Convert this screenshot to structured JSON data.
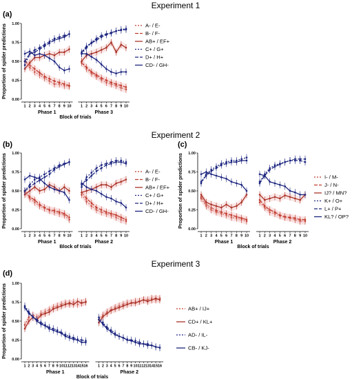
{
  "figure": {
    "experiment_titles": [
      "Experiment 1",
      "Experiment 2",
      "Experiment 3"
    ],
    "colors": {
      "dark_blue": "#1a237e",
      "blue": "#3344aa",
      "dark_red": "#9e1b1b",
      "orange_red": "#bf4a1f",
      "band": "#f3c8c8"
    }
  },
  "chart_data": [
    {
      "panel": "(a)",
      "type": "line",
      "ylabel": "Proportion of spider predictions",
      "xlabel": "Block of trials",
      "ylim": [
        0,
        1
      ],
      "yticks": [
        "0.00",
        "0.25",
        "0.50",
        "0.75",
        "1.00"
      ],
      "phases": [
        {
          "label": "Phase 1",
          "x": [
            1,
            2,
            3,
            4,
            5,
            6,
            7,
            8,
            9,
            10
          ]
        },
        {
          "label": "Phase 3",
          "x": [
            1,
            2,
            3,
            4,
            5,
            6,
            7,
            8,
            9,
            10
          ]
        }
      ],
      "series": [
        {
          "name": "A- / E-",
          "color": "#c0392b",
          "dash": "2,2",
          "values": [
            [
              0.5,
              0.42,
              0.36,
              0.32,
              0.28,
              0.24,
              0.2,
              0.2,
              0.18,
              0.17
            ],
            [
              0.5,
              0.4,
              0.34,
              0.3,
              0.26,
              0.22,
              0.2,
              0.18,
              0.15,
              0.13
            ]
          ]
        },
        {
          "name": "B- / F-",
          "color": "#c0392b",
          "dash": "5,2",
          "values": [
            [
              0.5,
              0.45,
              0.4,
              0.35,
              0.3,
              0.27,
              0.24,
              0.22,
              0.2,
              0.18
            ],
            [
              0.48,
              0.42,
              0.36,
              0.32,
              0.28,
              0.25,
              0.22,
              0.2,
              0.18,
              0.16
            ]
          ]
        },
        {
          "name": "AB+ / EF+",
          "color": "#a93226",
          "dash": "",
          "values": [
            [
              0.4,
              0.48,
              0.55,
              0.55,
              0.58,
              0.6,
              0.58,
              0.62,
              0.62,
              0.66
            ],
            [
              0.5,
              0.58,
              0.6,
              0.62,
              0.65,
              0.68,
              0.75,
              0.62,
              0.72,
              0.68
            ]
          ]
        },
        {
          "name": "C+ / G+",
          "color": "#1a237e",
          "dash": "2,2",
          "values": [
            [
              0.45,
              0.6,
              0.65,
              0.68,
              0.72,
              0.76,
              0.8,
              0.82,
              0.84,
              0.86
            ],
            [
              0.6,
              0.68,
              0.75,
              0.8,
              0.84,
              0.86,
              0.88,
              0.9,
              0.92,
              0.93
            ]
          ]
        },
        {
          "name": "D+ / H+",
          "color": "#1a237e",
          "dash": "5,2",
          "values": [
            [
              0.5,
              0.6,
              0.62,
              0.66,
              0.7,
              0.74,
              0.78,
              0.8,
              0.82,
              0.86
            ],
            [
              0.62,
              0.7,
              0.74,
              0.78,
              0.82,
              0.85,
              0.87,
              0.9,
              0.91,
              0.92
            ]
          ]
        },
        {
          "name": "CD- / GH-",
          "color": "#1a237e",
          "dash": "",
          "values": [
            [
              0.6,
              0.63,
              0.58,
              0.6,
              0.58,
              0.54,
              0.5,
              0.42,
              0.38,
              0.4
            ],
            [
              0.6,
              0.6,
              0.56,
              0.52,
              0.46,
              0.4,
              0.36,
              0.34,
              0.36,
              0.36
            ]
          ]
        }
      ]
    },
    {
      "panel": "(b)",
      "type": "line",
      "ylabel": "Proportion of spider predictions",
      "xlabel": "Block of trials",
      "ylim": [
        0,
        1
      ],
      "yticks": [
        "0.00",
        "0.25",
        "0.50",
        "0.75",
        "1.00"
      ],
      "phases": [
        {
          "label": "Phase 1",
          "x": [
            1,
            2,
            3,
            4,
            5,
            6,
            7,
            8,
            9,
            10
          ]
        },
        {
          "label": "Phase 2",
          "x": [
            1,
            2,
            3,
            4,
            5,
            6,
            7,
            8,
            9,
            10
          ]
        }
      ],
      "series": [
        {
          "name": "A- / E-",
          "color": "#c0392b",
          "dash": "2,2",
          "values": [
            [
              0.48,
              0.4,
              0.35,
              0.3,
              0.27,
              0.24,
              0.22,
              0.2,
              0.18,
              0.12
            ],
            [
              0.45,
              0.36,
              0.3,
              0.25,
              0.22,
              0.2,
              0.18,
              0.15,
              0.12,
              0.1
            ]
          ]
        },
        {
          "name": "B- / F-",
          "color": "#c0392b",
          "dash": "5,2",
          "values": [
            [
              0.5,
              0.42,
              0.38,
              0.32,
              0.28,
              0.25,
              0.24,
              0.22,
              0.2,
              0.15
            ],
            [
              0.48,
              0.4,
              0.34,
              0.28,
              0.25,
              0.22,
              0.2,
              0.18,
              0.15,
              0.12
            ]
          ]
        },
        {
          "name": "AB+ / EF+",
          "color": "#a93226",
          "dash": "",
          "values": [
            [
              0.45,
              0.5,
              0.55,
              0.5,
              0.52,
              0.58,
              0.55,
              0.5,
              0.55,
              0.5
            ],
            [
              0.48,
              0.5,
              0.52,
              0.55,
              0.58,
              0.58,
              0.55,
              0.6,
              0.62,
              0.65
            ]
          ]
        },
        {
          "name": "C+ / G+",
          "color": "#1a237e",
          "dash": "2,2",
          "values": [
            [
              0.5,
              0.58,
              0.65,
              0.68,
              0.72,
              0.76,
              0.8,
              0.84,
              0.86,
              0.88
            ],
            [
              0.55,
              0.68,
              0.74,
              0.8,
              0.84,
              0.86,
              0.88,
              0.9,
              0.9,
              0.88
            ]
          ]
        },
        {
          "name": "D+ / H+",
          "color": "#1a237e",
          "dash": "5,2",
          "values": [
            [
              0.5,
              0.55,
              0.6,
              0.64,
              0.68,
              0.72,
              0.78,
              0.82,
              0.85,
              0.88
            ],
            [
              0.58,
              0.64,
              0.7,
              0.76,
              0.8,
              0.84,
              0.86,
              0.88,
              0.88,
              0.86
            ]
          ]
        },
        {
          "name": "CD- / GH-",
          "color": "#1a237e",
          "dash": "",
          "values": [
            [
              0.65,
              0.7,
              0.68,
              0.66,
              0.6,
              0.55,
              0.52,
              0.5,
              0.48,
              0.38
            ],
            [
              0.6,
              0.55,
              0.52,
              0.5,
              0.46,
              0.42,
              0.4,
              0.36,
              0.34,
              0.28
            ]
          ]
        }
      ]
    },
    {
      "panel": "(c)",
      "type": "line",
      "ylabel": "Proportion of spider predictions",
      "xlabel": "Block of trials",
      "ylim": [
        0,
        1
      ],
      "yticks": [
        "0.00",
        "0.25",
        "0.50",
        "0.75",
        "1.00"
      ],
      "phases": [
        {
          "label": "Phase 1",
          "x": [
            1,
            2,
            3,
            4,
            5,
            6,
            7,
            8,
            9,
            10
          ]
        },
        {
          "label": "Phase 2",
          "x": [
            1,
            2,
            3,
            4,
            5,
            6,
            7,
            8,
            9,
            10
          ]
        }
      ],
      "series": [
        {
          "name": "I- / M-",
          "color": "#c0392b",
          "dash": "2,2",
          "values": [
            [
              0.4,
              0.3,
              0.25,
              0.22,
              0.2,
              0.18,
              0.15,
              0.14,
              0.12,
              0.1
            ],
            [
              0.35,
              0.28,
              0.22,
              0.2,
              0.17,
              0.15,
              0.14,
              0.12,
              0.1,
              0.1
            ]
          ]
        },
        {
          "name": "J- / N-",
          "color": "#c0392b",
          "dash": "5,2",
          "values": [
            [
              0.42,
              0.32,
              0.28,
              0.24,
              0.22,
              0.2,
              0.18,
              0.16,
              0.14,
              0.12
            ],
            [
              0.38,
              0.3,
              0.25,
              0.22,
              0.18,
              0.16,
              0.15,
              0.14,
              0.12,
              0.12
            ]
          ]
        },
        {
          "name": "IJ? / MN?",
          "color": "#a93226",
          "dash": "",
          "values": [
            [
              0.45,
              0.35,
              0.32,
              0.3,
              0.28,
              0.32,
              0.28,
              0.3,
              0.35,
              0.45
            ],
            [
              0.45,
              0.38,
              0.4,
              0.42,
              0.4,
              0.44,
              0.42,
              0.4,
              0.38,
              0.45
            ]
          ]
        },
        {
          "name": "K+ / O+",
          "color": "#1a237e",
          "dash": "2,2",
          "values": [
            [
              0.6,
              0.72,
              0.78,
              0.82,
              0.86,
              0.88,
              0.9,
              0.9,
              0.92,
              0.94
            ],
            [
              0.62,
              0.72,
              0.8,
              0.84,
              0.86,
              0.88,
              0.9,
              0.92,
              0.92,
              0.92
            ]
          ]
        },
        {
          "name": "L+ / P+",
          "color": "#1a237e",
          "dash": "5,2",
          "values": [
            [
              0.62,
              0.7,
              0.76,
              0.8,
              0.84,
              0.86,
              0.88,
              0.88,
              0.9,
              0.9
            ],
            [
              0.6,
              0.7,
              0.78,
              0.82,
              0.85,
              0.88,
              0.9,
              0.9,
              0.9,
              0.88
            ]
          ]
        },
        {
          "name": "KL? / OP?",
          "color": "#1a237e",
          "dash": "",
          "values": [
            [
              0.72,
              0.75,
              0.72,
              0.7,
              0.68,
              0.66,
              0.62,
              0.6,
              0.58,
              0.5
            ],
            [
              0.72,
              0.7,
              0.62,
              0.6,
              0.58,
              0.56,
              0.5,
              0.48,
              0.45,
              0.45
            ]
          ]
        }
      ]
    },
    {
      "panel": "(d)",
      "type": "line",
      "ylabel": "Proportion of spider predictions",
      "xlabel": "Block of trials",
      "ylim": [
        0,
        1
      ],
      "yticks": [
        "0.00",
        "0.25",
        "0.50",
        "0.75",
        "1.00"
      ],
      "phases": [
        {
          "label": "Phase 1",
          "x": [
            1,
            2,
            3,
            4,
            5,
            6,
            7,
            8,
            9,
            10,
            11,
            12,
            13,
            14,
            15,
            16
          ]
        },
        {
          "label": "Phase 2",
          "x": [
            1,
            2,
            3,
            4,
            5,
            6,
            7,
            8,
            9,
            10,
            11,
            12,
            13,
            14,
            15,
            16
          ]
        }
      ],
      "series": [
        {
          "name": "AB+ / IJ+",
          "color": "#c0392b",
          "dash": "2,2",
          "values": [
            [
              0.45,
              0.55,
              0.58,
              0.55,
              0.6,
              0.62,
              0.65,
              0.68,
              0.7,
              0.72,
              0.74,
              0.72,
              0.75,
              0.72,
              0.74,
              0.76
            ],
            [
              0.52,
              0.58,
              0.62,
              0.65,
              0.68,
              0.7,
              0.72,
              0.74,
              0.74,
              0.76,
              0.76,
              0.78,
              0.78,
              0.8,
              0.78,
              0.8
            ]
          ]
        },
        {
          "name": "CD+ / KL+",
          "color": "#a93226",
          "dash": "",
          "values": [
            [
              0.4,
              0.5,
              0.55,
              0.52,
              0.58,
              0.6,
              0.62,
              0.66,
              0.68,
              0.7,
              0.72,
              0.74,
              0.72,
              0.76,
              0.74,
              0.75
            ],
            [
              0.48,
              0.56,
              0.6,
              0.64,
              0.66,
              0.68,
              0.7,
              0.72,
              0.74,
              0.74,
              0.76,
              0.78,
              0.76,
              0.78,
              0.8,
              0.78
            ]
          ]
        },
        {
          "name": "AD- / IL-",
          "color": "#1a237e",
          "dash": "2,2",
          "values": [
            [
              0.7,
              0.62,
              0.55,
              0.52,
              0.48,
              0.45,
              0.42,
              0.4,
              0.38,
              0.35,
              0.32,
              0.3,
              0.28,
              0.26,
              0.25,
              0.24
            ],
            [
              0.55,
              0.48,
              0.42,
              0.38,
              0.34,
              0.3,
              0.28,
              0.26,
              0.25,
              0.24,
              0.22,
              0.2,
              0.2,
              0.18,
              0.16,
              0.15
            ]
          ]
        },
        {
          "name": "CB- / KJ-",
          "color": "#1a237e",
          "dash": "",
          "values": [
            [
              0.68,
              0.6,
              0.56,
              0.5,
              0.46,
              0.44,
              0.4,
              0.38,
              0.36,
              0.34,
              0.3,
              0.28,
              0.26,
              0.25,
              0.22,
              0.22
            ],
            [
              0.52,
              0.46,
              0.4,
              0.36,
              0.32,
              0.3,
              0.28,
              0.25,
              0.24,
              0.22,
              0.2,
              0.2,
              0.18,
              0.18,
              0.16,
              0.15
            ]
          ]
        }
      ]
    }
  ]
}
